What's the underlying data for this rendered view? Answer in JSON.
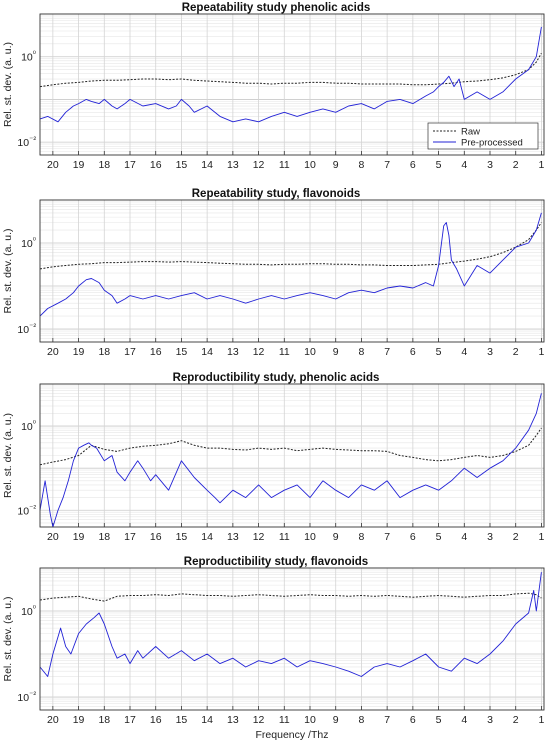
{
  "chart_data": [
    {
      "type": "line",
      "title": "Repeatability study phenolic acids",
      "ylabel": "Rel. st. dev. (a. u.)",
      "xlabel": "",
      "y_scale": "log",
      "ylim": [
        0.005,
        10
      ],
      "xlim": [
        20.5,
        0.9
      ],
      "x_reversed": true,
      "grid": true,
      "x_ticks": [
        20,
        19,
        18,
        17,
        16,
        15,
        14,
        13,
        12,
        11,
        10,
        9,
        8,
        7,
        6,
        5,
        4,
        3,
        2,
        1
      ],
      "y_ticks": [
        {
          "value": 1,
          "label": "10⁰"
        },
        {
          "value": 0.01,
          "label": "10⁻²"
        }
      ],
      "legend": {
        "placement": "bottom-right",
        "entries": [
          "Raw",
          "Pre-processed"
        ]
      },
      "series": [
        {
          "name": "Raw",
          "color": "#222222",
          "dash": "dotted",
          "x": [
            20.5,
            20,
            19.5,
            19,
            18.5,
            18,
            17.5,
            17,
            16.5,
            16,
            15.5,
            15,
            14.5,
            14,
            13.5,
            13,
            12.5,
            12,
            11.5,
            11,
            10.5,
            10,
            9.5,
            9,
            8.5,
            8,
            7.5,
            7,
            6.5,
            6,
            5.5,
            5,
            4.5,
            4,
            3.5,
            3,
            2.5,
            2,
            1.5,
            1.2,
            1.0
          ],
          "y": [
            0.2,
            0.22,
            0.24,
            0.25,
            0.27,
            0.28,
            0.28,
            0.29,
            0.3,
            0.3,
            0.29,
            0.3,
            0.28,
            0.27,
            0.26,
            0.25,
            0.24,
            0.24,
            0.23,
            0.24,
            0.24,
            0.25,
            0.25,
            0.24,
            0.24,
            0.23,
            0.23,
            0.23,
            0.23,
            0.22,
            0.22,
            0.23,
            0.24,
            0.26,
            0.27,
            0.29,
            0.32,
            0.38,
            0.5,
            0.75,
            1.2
          ]
        },
        {
          "name": "Pre-processed",
          "color": "#2323d6",
          "dash": "solid",
          "x": [
            20.5,
            20.2,
            19.8,
            19.5,
            19.2,
            19,
            18.7,
            18.5,
            18.2,
            18,
            17.7,
            17.5,
            17.2,
            17,
            16.5,
            16,
            15.5,
            15.2,
            15,
            14.7,
            14.5,
            14,
            13.5,
            13,
            12.5,
            12,
            11.5,
            11,
            10.5,
            10,
            9.5,
            9,
            8.5,
            8,
            7.5,
            7,
            6.5,
            6,
            5.5,
            5.2,
            5,
            4.8,
            4.6,
            4.4,
            4.2,
            4,
            3.5,
            3,
            2.5,
            2,
            1.5,
            1.2,
            1.0
          ],
          "y": [
            0.035,
            0.04,
            0.03,
            0.05,
            0.07,
            0.08,
            0.1,
            0.09,
            0.08,
            0.1,
            0.07,
            0.06,
            0.08,
            0.1,
            0.07,
            0.08,
            0.06,
            0.07,
            0.1,
            0.07,
            0.05,
            0.07,
            0.04,
            0.03,
            0.035,
            0.03,
            0.04,
            0.05,
            0.04,
            0.05,
            0.06,
            0.05,
            0.07,
            0.08,
            0.06,
            0.09,
            0.1,
            0.08,
            0.12,
            0.15,
            0.2,
            0.25,
            0.35,
            0.2,
            0.3,
            0.1,
            0.15,
            0.1,
            0.15,
            0.3,
            0.5,
            1.0,
            5.0
          ]
        }
      ]
    },
    {
      "type": "line",
      "title": "Repeatability study, flavonoids",
      "ylabel": "Rel. st. dev. (a. u.)",
      "xlabel": "",
      "y_scale": "log",
      "ylim": [
        0.005,
        10
      ],
      "xlim": [
        20.5,
        0.9
      ],
      "x_reversed": true,
      "grid": true,
      "x_ticks": [
        20,
        19,
        18,
        17,
        16,
        15,
        14,
        13,
        12,
        11,
        10,
        9,
        8,
        7,
        6,
        5,
        4,
        3,
        2,
        1
      ],
      "y_ticks": [
        {
          "value": 1,
          "label": "10⁰"
        },
        {
          "value": 0.01,
          "label": "10⁻²"
        }
      ],
      "series": [
        {
          "name": "Raw",
          "color": "#222222",
          "dash": "dotted",
          "x": [
            20.5,
            20,
            19.5,
            19,
            18.5,
            18,
            17.5,
            17,
            16.5,
            16,
            15.5,
            15,
            14.5,
            14,
            13.5,
            13,
            12.5,
            12,
            11.5,
            11,
            10.5,
            10,
            9.5,
            9,
            8.5,
            8,
            7.5,
            7,
            6.5,
            6,
            5.5,
            5,
            4.5,
            4,
            3.5,
            3,
            2.5,
            2,
            1.5,
            1.2,
            1.0
          ],
          "y": [
            0.25,
            0.28,
            0.3,
            0.32,
            0.33,
            0.35,
            0.35,
            0.36,
            0.37,
            0.37,
            0.36,
            0.37,
            0.36,
            0.35,
            0.34,
            0.33,
            0.32,
            0.32,
            0.31,
            0.32,
            0.32,
            0.33,
            0.33,
            0.32,
            0.32,
            0.31,
            0.31,
            0.3,
            0.3,
            0.3,
            0.31,
            0.32,
            0.35,
            0.38,
            0.42,
            0.48,
            0.6,
            0.8,
            1.2,
            2.0,
            3.0
          ]
        },
        {
          "name": "Pre-processed",
          "color": "#2323d6",
          "dash": "solid",
          "x": [
            20.5,
            20.2,
            19.8,
            19.5,
            19.2,
            19,
            18.7,
            18.5,
            18.2,
            18,
            17.7,
            17.5,
            17.2,
            17,
            16.5,
            16,
            15.5,
            15,
            14.5,
            14,
            13.5,
            13,
            12.5,
            12,
            11.5,
            11,
            10.5,
            10,
            9.5,
            9,
            8.5,
            8,
            7.5,
            7,
            6.5,
            6,
            5.5,
            5.2,
            5,
            4.8,
            4.7,
            4.6,
            4.5,
            4.3,
            4,
            3.5,
            3,
            2.5,
            2,
            1.5,
            1.2,
            1.0
          ],
          "y": [
            0.02,
            0.03,
            0.04,
            0.05,
            0.07,
            0.1,
            0.14,
            0.15,
            0.12,
            0.08,
            0.06,
            0.04,
            0.05,
            0.06,
            0.05,
            0.06,
            0.05,
            0.06,
            0.07,
            0.05,
            0.06,
            0.05,
            0.04,
            0.05,
            0.06,
            0.05,
            0.06,
            0.07,
            0.06,
            0.05,
            0.07,
            0.08,
            0.07,
            0.09,
            0.1,
            0.09,
            0.12,
            0.1,
            0.3,
            2.5,
            3.0,
            1.5,
            0.4,
            0.25,
            0.1,
            0.3,
            0.2,
            0.4,
            0.8,
            1.0,
            2.0,
            5.0
          ]
        }
      ]
    },
    {
      "type": "line",
      "title": "Reproductibility study, phenolic acids",
      "ylabel": "Rel. st. dev. (a. u.)",
      "xlabel": "",
      "y_scale": "log",
      "ylim": [
        0.004,
        10
      ],
      "xlim": [
        20.5,
        0.9
      ],
      "x_reversed": true,
      "grid": true,
      "x_ticks": [
        20,
        19,
        18,
        17,
        16,
        15,
        14,
        13,
        12,
        11,
        10,
        9,
        8,
        7,
        6,
        5,
        4,
        3,
        2,
        1
      ],
      "y_ticks": [
        {
          "value": 1,
          "label": "10⁰"
        },
        {
          "value": 0.01,
          "label": "10⁻²"
        }
      ],
      "series": [
        {
          "name": "Raw",
          "color": "#222222",
          "dash": "dotted",
          "x": [
            20.5,
            20,
            19.5,
            19,
            18.5,
            18,
            17.5,
            17,
            16.5,
            16,
            15.5,
            15,
            14.5,
            14,
            13.5,
            13,
            12.5,
            12,
            11.5,
            11,
            10.5,
            10,
            9.5,
            9,
            8.5,
            8,
            7.5,
            7,
            6.5,
            6,
            5.5,
            5,
            4.5,
            4,
            3.5,
            3,
            2.5,
            2,
            1.5,
            1.2,
            1.0
          ],
          "y": [
            0.12,
            0.14,
            0.16,
            0.2,
            0.35,
            0.28,
            0.25,
            0.3,
            0.33,
            0.35,
            0.38,
            0.45,
            0.35,
            0.3,
            0.3,
            0.28,
            0.27,
            0.3,
            0.28,
            0.3,
            0.26,
            0.28,
            0.3,
            0.28,
            0.27,
            0.26,
            0.26,
            0.25,
            0.2,
            0.18,
            0.16,
            0.15,
            0.16,
            0.18,
            0.2,
            0.18,
            0.2,
            0.25,
            0.35,
            0.6,
            0.9
          ]
        },
        {
          "name": "Pre-processed",
          "color": "#2323d6",
          "dash": "solid",
          "x": [
            20.5,
            20.3,
            20.1,
            20,
            19.8,
            19.6,
            19.4,
            19.2,
            19,
            18.8,
            18.6,
            18.5,
            18.3,
            18,
            17.7,
            17.5,
            17.2,
            17,
            16.7,
            16.5,
            16.2,
            16,
            15.5,
            15,
            14.5,
            14,
            13.7,
            13.5,
            13,
            12.5,
            12,
            11.5,
            11,
            10.5,
            10,
            9.5,
            9,
            8.5,
            8,
            7.5,
            7,
            6.5,
            6,
            5.5,
            5,
            4.5,
            4,
            3.5,
            3,
            2.5,
            2,
            1.5,
            1.2,
            1.0
          ],
          "y": [
            0.01,
            0.05,
            0.008,
            0.004,
            0.01,
            0.02,
            0.05,
            0.15,
            0.3,
            0.35,
            0.4,
            0.35,
            0.3,
            0.15,
            0.2,
            0.08,
            0.05,
            0.08,
            0.15,
            0.1,
            0.05,
            0.07,
            0.03,
            0.15,
            0.06,
            0.03,
            0.02,
            0.015,
            0.03,
            0.02,
            0.04,
            0.02,
            0.03,
            0.04,
            0.02,
            0.05,
            0.03,
            0.02,
            0.04,
            0.03,
            0.05,
            0.02,
            0.03,
            0.04,
            0.03,
            0.05,
            0.1,
            0.06,
            0.1,
            0.15,
            0.3,
            0.8,
            2.0,
            6.0
          ]
        }
      ]
    },
    {
      "type": "line",
      "title": "Reproductibility study, flavonoids",
      "ylabel": "Rel. st. dev. (a. u.)",
      "xlabel": "Frequency /Thz",
      "y_scale": "log",
      "ylim": [
        0.005,
        10
      ],
      "xlim": [
        20.5,
        0.9
      ],
      "x_reversed": true,
      "grid": true,
      "x_ticks": [
        20,
        19,
        18,
        17,
        16,
        15,
        14,
        13,
        12,
        11,
        10,
        9,
        8,
        7,
        6,
        5,
        4,
        3,
        2,
        1
      ],
      "y_ticks": [
        {
          "value": 1,
          "label": "10⁰"
        },
        {
          "value": 0.01,
          "label": "10⁻²"
        }
      ],
      "series": [
        {
          "name": "Raw",
          "color": "#222222",
          "dash": "dotted",
          "x": [
            20.5,
            20,
            19.5,
            19,
            18.5,
            18,
            17.5,
            17,
            16.5,
            16,
            15.5,
            15,
            14.5,
            14,
            13.5,
            13,
            12.5,
            12,
            11.5,
            11,
            10.5,
            10,
            9.5,
            9,
            8.5,
            8,
            7.5,
            7,
            6.5,
            6,
            5.5,
            5,
            4.5,
            4,
            3.5,
            3,
            2.5,
            2,
            1.5,
            1.2,
            1.0
          ],
          "y": [
            1.8,
            2.0,
            2.1,
            2.2,
            1.9,
            1.7,
            2.2,
            2.3,
            2.3,
            2.4,
            2.3,
            2.5,
            2.4,
            2.3,
            2.3,
            2.2,
            2.3,
            2.4,
            2.3,
            2.2,
            2.3,
            2.4,
            2.3,
            2.3,
            2.2,
            2.3,
            2.2,
            2.3,
            2.2,
            2.1,
            2.2,
            2.3,
            2.2,
            2.1,
            2.2,
            2.3,
            2.3,
            2.5,
            2.6,
            2.4,
            2.0
          ]
        },
        {
          "name": "Pre-processed",
          "color": "#2323d6",
          "dash": "solid",
          "x": [
            20.5,
            20.2,
            20,
            19.7,
            19.5,
            19.3,
            19,
            18.7,
            18.4,
            18.2,
            18,
            17.7,
            17.5,
            17.2,
            17,
            16.7,
            16.5,
            16,
            15.5,
            15,
            14.5,
            14,
            13.5,
            13,
            12.5,
            12,
            11.5,
            11,
            10.5,
            10,
            9.5,
            9,
            8.5,
            8,
            7.5,
            7,
            6.5,
            6,
            5.5,
            5,
            4.5,
            4,
            3.5,
            3,
            2.5,
            2,
            1.5,
            1.3,
            1.2,
            1.0
          ],
          "y": [
            0.05,
            0.03,
            0.1,
            0.4,
            0.15,
            0.1,
            0.3,
            0.5,
            0.7,
            0.9,
            0.5,
            0.15,
            0.08,
            0.1,
            0.06,
            0.12,
            0.08,
            0.15,
            0.08,
            0.12,
            0.07,
            0.1,
            0.06,
            0.08,
            0.05,
            0.07,
            0.06,
            0.08,
            0.05,
            0.07,
            0.06,
            0.05,
            0.04,
            0.03,
            0.05,
            0.06,
            0.05,
            0.07,
            0.1,
            0.05,
            0.04,
            0.08,
            0.06,
            0.1,
            0.2,
            0.5,
            0.9,
            3.0,
            1.0,
            8.0
          ]
        }
      ]
    }
  ]
}
